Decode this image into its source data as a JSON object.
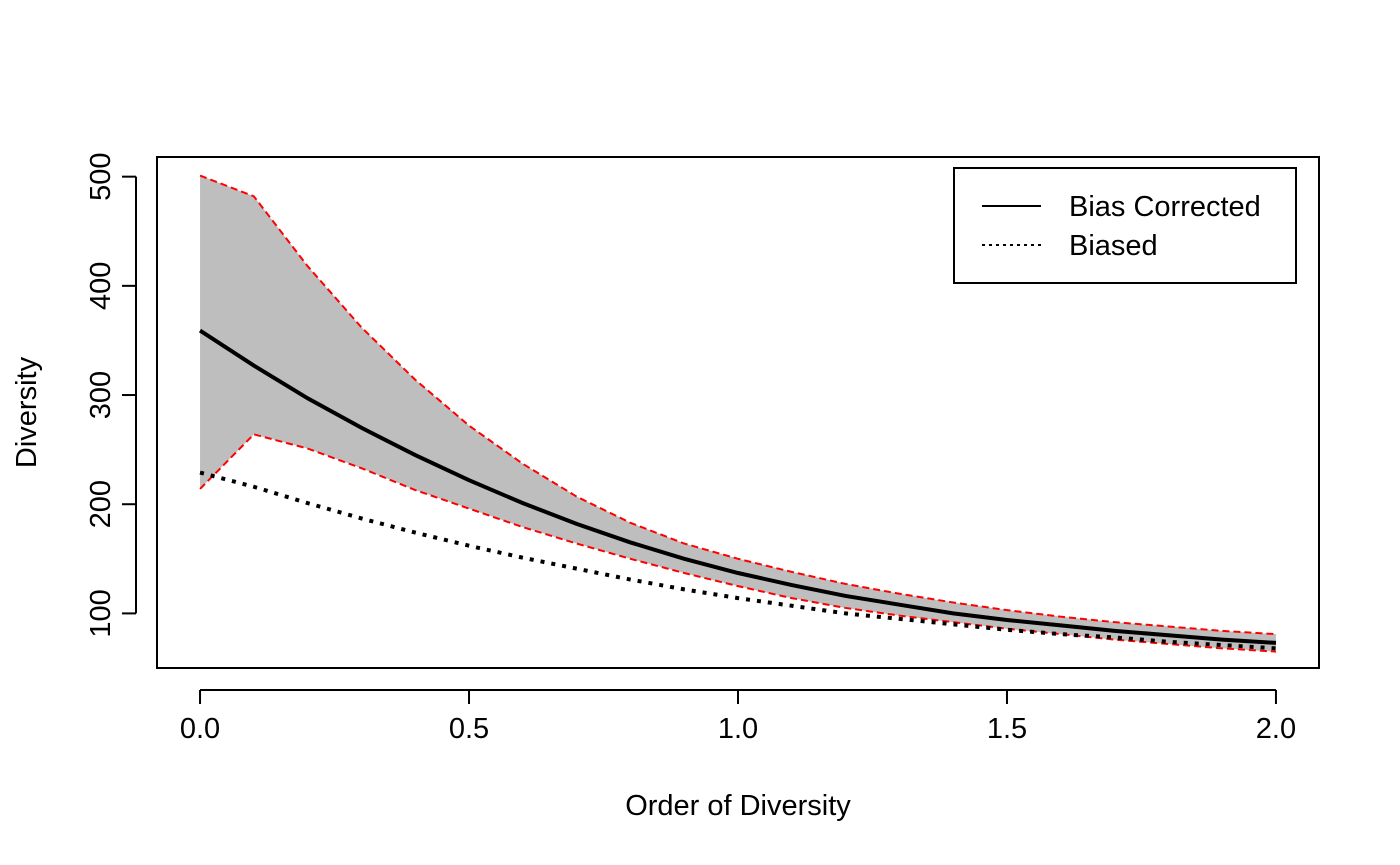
{
  "chart_data": {
    "type": "line",
    "title": "",
    "xlabel": "Order of Diversity",
    "ylabel": "Diversity",
    "xlim": [
      -0.08,
      2.08
    ],
    "ylim": [
      50,
      518
    ],
    "xticks": [
      0,
      0.5,
      1,
      1.5,
      2
    ],
    "xtick_labels": [
      "0.0",
      "0.5",
      "1.0",
      "1.5",
      "2.0"
    ],
    "yticks": [
      100,
      200,
      300,
      400,
      500
    ],
    "ytick_labels": [
      "100",
      "200",
      "300",
      "400",
      "500"
    ],
    "grid": false,
    "legend_position": "top-right",
    "x": [
      0.0,
      0.1,
      0.2,
      0.3,
      0.4,
      0.5,
      0.6,
      0.7,
      0.8,
      0.9,
      1.0,
      1.1,
      1.2,
      1.3,
      1.4,
      1.5,
      1.6,
      1.7,
      1.8,
      1.9,
      2.0
    ],
    "series": [
      {
        "name": "Bias Corrected",
        "line_style": "solid",
        "color": "#000000",
        "values": [
          359,
          327,
          297,
          270,
          245,
          222,
          201,
          182,
          165,
          150,
          137,
          126,
          116,
          108,
          100,
          94,
          89,
          84,
          80,
          76,
          73
        ]
      },
      {
        "name": "Biased",
        "line_style": "dotted",
        "color": "#000000",
        "values": [
          229,
          216,
          201,
          187,
          174,
          162,
          151,
          141,
          131,
          122,
          114,
          107,
          100,
          95,
          90,
          85,
          81,
          78,
          74,
          71,
          68
        ]
      }
    ],
    "confidence_band": {
      "fill_color": "#bebebe",
      "bound_color": "#ff0000",
      "bound_style": "dashed",
      "upper": [
        501,
        482,
        418,
        362,
        314,
        272,
        237,
        207,
        183,
        164,
        150,
        138,
        127,
        118,
        110,
        103,
        97,
        92,
        88,
        84,
        81
      ],
      "lower": [
        214,
        264,
        251,
        233,
        213,
        196,
        179,
        164,
        150,
        137,
        125,
        114,
        105,
        98,
        92,
        86,
        81,
        76,
        72,
        68,
        65
      ]
    }
  }
}
